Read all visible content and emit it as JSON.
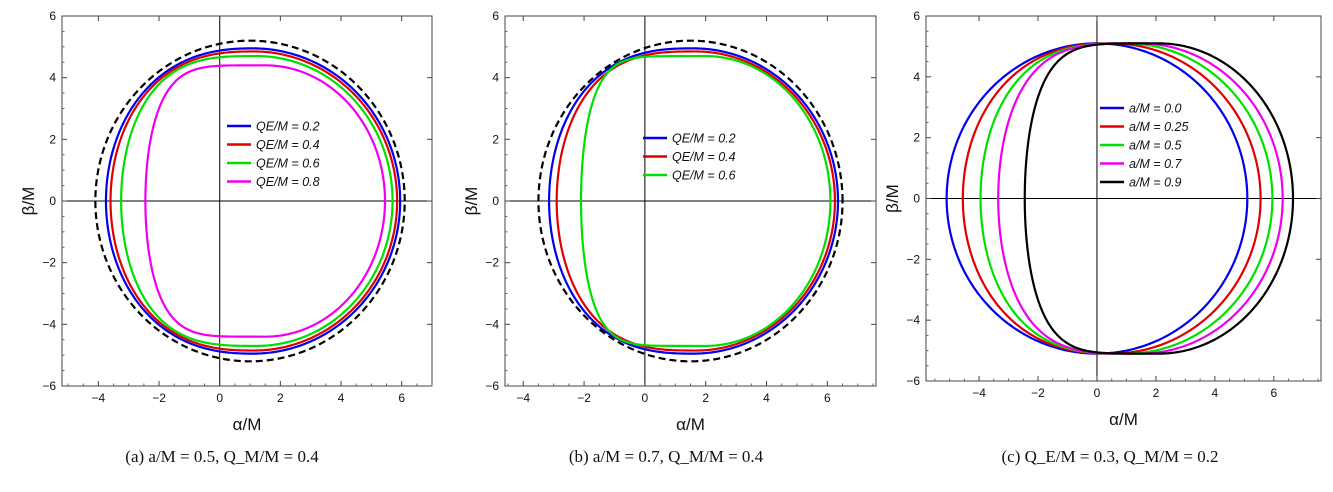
{
  "chart_data": [
    {
      "type": "line",
      "caption": "(a) a/M = 0.5, Q_M/M = 0.4",
      "xlabel": "α/M",
      "ylabel": "β/M",
      "xlim": [
        -5.2,
        7.0
      ],
      "ylim": [
        -6,
        6
      ],
      "xticks": [
        -4,
        -2,
        0,
        2,
        4,
        6
      ],
      "yticks": [
        -6,
        -4,
        -2,
        0,
        2,
        4,
        6
      ],
      "legend_placement": "center",
      "series": [
        {
          "name": "Q_E/M = 0.2",
          "color": "#0000ee",
          "dash": false,
          "shape": {
            "xl": -3.75,
            "xr": 5.95,
            "xc": 1.1,
            "h": 4.95,
            "s": 0.05
          }
        },
        {
          "name": "Q_E/M = 0.4",
          "color": "#e00000",
          "dash": false,
          "shape": {
            "xl": -3.6,
            "xr": 5.85,
            "xc": 1.1,
            "h": 4.85,
            "s": 0.07
          }
        },
        {
          "name": "Q_E/M = 0.6",
          "color": "#00e000",
          "dash": false,
          "shape": {
            "xl": -3.25,
            "xr": 5.7,
            "xc": 1.15,
            "h": 4.7,
            "s": 0.15
          }
        },
        {
          "name": "Q_E/M = 0.8",
          "color": "#ee00ee",
          "dash": false,
          "shape": {
            "xl": -2.45,
            "xr": 5.45,
            "xc": 1.2,
            "h": 4.4,
            "s": 0.4
          }
        },
        {
          "name": "",
          "color": "#000000",
          "dash": true,
          "shape": {
            "xl": -4.1,
            "xr": 6.1,
            "xc": 1.0,
            "h": 5.2,
            "s": 0.0
          }
        }
      ]
    },
    {
      "type": "line",
      "caption": "(b) a/M = 0.7, Q_M/M = 0.4",
      "xlabel": "α/M",
      "ylabel": "β/M",
      "xlim": [
        -4.6,
        7.6
      ],
      "ylim": [
        -6,
        6
      ],
      "xticks": [
        -4,
        -2,
        0,
        2,
        4,
        6
      ],
      "yticks": [
        -6,
        -4,
        -2,
        0,
        2,
        4,
        6
      ],
      "legend_placement": "center",
      "series": [
        {
          "name": "Q_E/M = 0.2",
          "color": "#0000ee",
          "dash": false,
          "shape": {
            "xl": -3.15,
            "xr": 6.35,
            "xc": 1.5,
            "h": 4.95,
            "s": 0.08
          }
        },
        {
          "name": "Q_E/M = 0.4",
          "color": "#e00000",
          "dash": false,
          "shape": {
            "xl": -2.9,
            "xr": 6.25,
            "xc": 1.5,
            "h": 4.85,
            "s": 0.12
          }
        },
        {
          "name": "Q_E/M = 0.6",
          "color": "#00e000",
          "dash": false,
          "shape": {
            "xl": -2.1,
            "xr": 6.1,
            "xc": 1.55,
            "h": 4.7,
            "s": 0.55
          }
        },
        {
          "name": "",
          "color": "#000000",
          "dash": true,
          "shape": {
            "xl": -3.5,
            "xr": 6.5,
            "xc": 1.4,
            "h": 5.2,
            "s": 0.0
          }
        }
      ]
    },
    {
      "type": "line",
      "caption": "(c) Q_E/M = 0.3, Q_M/M = 0.2",
      "xlabel": "α/M",
      "ylabel": "β/M",
      "xlim": [
        -5.8,
        7.6
      ],
      "ylim": [
        -6,
        6
      ],
      "xticks": [
        -4,
        -2,
        0,
        2,
        4,
        6
      ],
      "yticks": [
        -6,
        -4,
        -2,
        0,
        2,
        4,
        6
      ],
      "legend_placement": "center",
      "series": [
        {
          "name": "a/M = 0.0",
          "color": "#0000ee",
          "dash": false,
          "shape": {
            "xl": -5.1,
            "xr": 5.1,
            "xc": 0.0,
            "h": 5.1,
            "s": 0.0
          }
        },
        {
          "name": "a/M = 0.25",
          "color": "#e00000",
          "dash": false,
          "shape": {
            "xl": -4.55,
            "xr": 5.55,
            "xc": 0.5,
            "h": 5.1,
            "s": 0.05
          }
        },
        {
          "name": "a/M = 0.5",
          "color": "#00e000",
          "dash": false,
          "shape": {
            "xl": -3.95,
            "xr": 5.95,
            "xc": 1.0,
            "h": 5.1,
            "s": 0.12
          }
        },
        {
          "name": "a/M = 0.7",
          "color": "#ee00ee",
          "dash": false,
          "shape": {
            "xl": -3.35,
            "xr": 6.3,
            "xc": 1.45,
            "h": 5.1,
            "s": 0.22
          }
        },
        {
          "name": "a/M = 0.9",
          "color": "#000000",
          "dash": false,
          "shape": {
            "xl": -2.45,
            "xr": 6.65,
            "xc": 1.9,
            "h": 5.1,
            "s": 0.42
          }
        }
      ]
    }
  ]
}
